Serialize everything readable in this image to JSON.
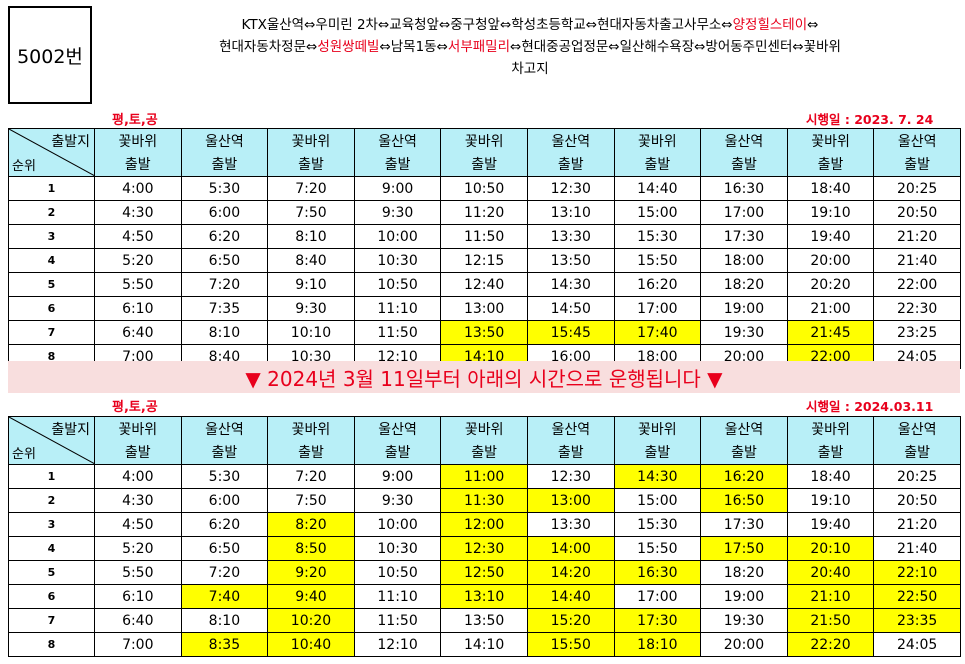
{
  "route_number": "5002번",
  "route_text": [
    {
      "t": "KTX울산역⇔우미린 2차⇔교육청앞⇔중구청앞⇔학성초등학교⇔현대자동차출고사무소⇔",
      "red": false
    },
    {
      "t": "양정힐스테이",
      "red": true
    },
    {
      "t": "⇔",
      "red": false
    },
    {
      "t": "\n현대자동차정문⇔",
      "red": false
    },
    {
      "t": "성원쌍떼빌",
      "red": true
    },
    {
      "t": "⇔남목1동⇔",
      "red": false
    },
    {
      "t": "서부패밀리",
      "red": true
    },
    {
      "t": "⇔현대중공업정문⇔일산해수욕장⇔방어동주민센터⇔꽃바위",
      "red": false
    },
    {
      "t": "\n차고지",
      "red": false
    }
  ],
  "tables": [
    {
      "day_types": "평,토,공",
      "effective": "시행일 : 2023. 7. 24",
      "corner_top": "출발지",
      "corner_bottom": "순위",
      "headers": [
        [
          "꽃바위",
          "출발"
        ],
        [
          "울산역",
          "출발"
        ],
        [
          "꽃바위",
          "출발"
        ],
        [
          "울산역",
          "출발"
        ],
        [
          "꽃바위",
          "출발"
        ],
        [
          "울산역",
          "출발"
        ],
        [
          "꽃바위",
          "출발"
        ],
        [
          "울산역",
          "출발"
        ],
        [
          "꽃바위",
          "출발"
        ],
        [
          "울산역",
          "출발"
        ]
      ],
      "rows": [
        {
          "rank": "1",
          "times": [
            "4:00",
            "5:30",
            "7:20",
            "9:00",
            "10:50",
            "12:30",
            "14:40",
            "16:30",
            "18:40",
            "20:25"
          ],
          "hl": []
        },
        {
          "rank": "2",
          "times": [
            "4:30",
            "6:00",
            "7:50",
            "9:30",
            "11:20",
            "13:10",
            "15:00",
            "17:00",
            "19:10",
            "20:50"
          ],
          "hl": []
        },
        {
          "rank": "3",
          "times": [
            "4:50",
            "6:20",
            "8:10",
            "10:00",
            "11:50",
            "13:30",
            "15:30",
            "17:30",
            "19:40",
            "21:20"
          ],
          "hl": []
        },
        {
          "rank": "4",
          "times": [
            "5:20",
            "6:50",
            "8:40",
            "10:30",
            "12:15",
            "13:50",
            "15:50",
            "18:00",
            "20:00",
            "21:40"
          ],
          "hl": []
        },
        {
          "rank": "5",
          "times": [
            "5:50",
            "7:20",
            "9:10",
            "10:50",
            "12:40",
            "14:30",
            "16:20",
            "18:20",
            "20:20",
            "22:00"
          ],
          "hl": []
        },
        {
          "rank": "6",
          "times": [
            "6:10",
            "7:35",
            "9:30",
            "11:10",
            "13:00",
            "14:50",
            "17:00",
            "19:00",
            "21:00",
            "22:30"
          ],
          "hl": []
        },
        {
          "rank": "7",
          "times": [
            "6:40",
            "8:10",
            "10:10",
            "11:50",
            "13:50",
            "15:45",
            "17:40",
            "19:30",
            "21:45",
            "23:25"
          ],
          "hl": [
            4,
            5,
            6,
            8
          ]
        },
        {
          "rank": "8",
          "times": [
            "7:00",
            "8:40",
            "10:30",
            "12:10",
            "14:10",
            "16:00",
            "18:00",
            "20:00",
            "22:00",
            "24:05"
          ],
          "hl": [
            4,
            8
          ]
        }
      ]
    },
    {
      "day_types": "평,토,공",
      "effective": "시행일 : 2024.03.11",
      "corner_top": "출발지",
      "corner_bottom": "순위",
      "headers": [
        [
          "꽃바위",
          "출발"
        ],
        [
          "울산역",
          "출발"
        ],
        [
          "꽃바위",
          "출발"
        ],
        [
          "울산역",
          "출발"
        ],
        [
          "꽃바위",
          "출발"
        ],
        [
          "울산역",
          "출발"
        ],
        [
          "꽃바위",
          "출발"
        ],
        [
          "울산역",
          "출발"
        ],
        [
          "꽃바위",
          "출발"
        ],
        [
          "울산역",
          "출발"
        ]
      ],
      "rows": [
        {
          "rank": "1",
          "times": [
            "4:00",
            "5:30",
            "7:20",
            "9:00",
            "11:00",
            "12:30",
            "14:30",
            "16:20",
            "18:40",
            "20:25"
          ],
          "hl": [
            4,
            6,
            7
          ]
        },
        {
          "rank": "2",
          "times": [
            "4:30",
            "6:00",
            "7:50",
            "9:30",
            "11:30",
            "13:00",
            "15:00",
            "16:50",
            "19:10",
            "20:50"
          ],
          "hl": [
            4,
            5,
            7
          ]
        },
        {
          "rank": "3",
          "times": [
            "4:50",
            "6:20",
            "8:20",
            "10:00",
            "12:00",
            "13:30",
            "15:30",
            "17:30",
            "19:40",
            "21:20"
          ],
          "hl": [
            2,
            4
          ]
        },
        {
          "rank": "4",
          "times": [
            "5:20",
            "6:50",
            "8:50",
            "10:30",
            "12:30",
            "14:00",
            "15:50",
            "17:50",
            "20:10",
            "21:40"
          ],
          "hl": [
            2,
            4,
            5,
            7,
            8
          ]
        },
        {
          "rank": "5",
          "times": [
            "5:50",
            "7:20",
            "9:20",
            "10:50",
            "12:50",
            "14:20",
            "16:30",
            "18:20",
            "20:40",
            "22:10"
          ],
          "hl": [
            2,
            4,
            5,
            6,
            8,
            9
          ]
        },
        {
          "rank": "6",
          "times": [
            "6:10",
            "7:40",
            "9:40",
            "11:10",
            "13:10",
            "14:40",
            "17:00",
            "19:00",
            "21:10",
            "22:50"
          ],
          "hl": [
            1,
            2,
            4,
            5,
            8,
            9
          ]
        },
        {
          "rank": "7",
          "times": [
            "6:40",
            "8:10",
            "10:20",
            "11:50",
            "13:50",
            "15:20",
            "17:30",
            "19:30",
            "21:50",
            "23:35"
          ],
          "hl": [
            2,
            5,
            6,
            8,
            9
          ]
        },
        {
          "rank": "8",
          "times": [
            "7:00",
            "8:35",
            "10:40",
            "12:10",
            "14:10",
            "15:50",
            "18:10",
            "20:00",
            "22:20",
            "24:05"
          ],
          "hl": [
            1,
            2,
            5,
            6,
            8
          ]
        }
      ]
    }
  ],
  "banner": "▼ 2024년 3월 11일부터 아래의 시간으로 운행됩니다 ▼",
  "colors": {
    "header_bg": "#b8eff7",
    "highlight": "#ffff00",
    "red": "#e8001c",
    "banner_bg": "#f8dede"
  }
}
